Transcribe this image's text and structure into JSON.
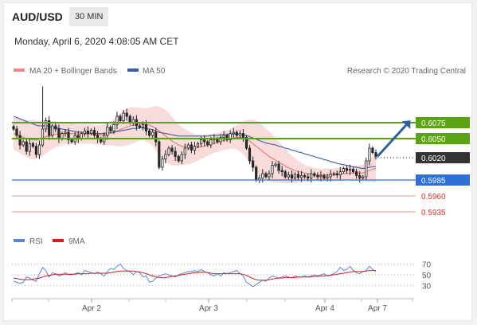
{
  "header": {
    "pair": "AUD/USD",
    "timeframe": "30 MIN"
  },
  "timestamp": "Monday, April 6, 2020 4:08:05 AM CET",
  "legend": {
    "ma_bands": "MA 20 + Bollinger Bands",
    "ma50": "MA 50",
    "credit": "Research © 2020 Trading Central"
  },
  "rsi_legend": {
    "rsi": "RSI",
    "ma": "9MA"
  },
  "colors": {
    "up_candle": "#ffffff",
    "down_candle": "#2b2b2b",
    "bands": "#f7d5d5",
    "ma20": "#e88080",
    "ma50": "#4a67a8",
    "resistance": "#5aa315",
    "support": "#2d6fd6",
    "target": "#e03030",
    "current": "#333333",
    "rsi_line": "#5b86d6",
    "rsi_ma": "#d02020",
    "arrow": "#2f5f9e"
  },
  "chart_data": [
    {
      "type": "candlestick",
      "y_range": [
        0.5915,
        0.614
      ],
      "x_ticks": [
        "Apr 2",
        "Apr 3",
        "Apr 4",
        "Apr 7"
      ],
      "levels": [
        {
          "value": "0.6075",
          "kind": "resistance"
        },
        {
          "value": "0.6050",
          "kind": "resistance"
        },
        {
          "value": "0.6020",
          "kind": "current"
        },
        {
          "value": "0.5985",
          "kind": "support"
        },
        {
          "value": "0.5960",
          "kind": "target"
        },
        {
          "value": "0.5935",
          "kind": "target"
        }
      ],
      "forecast": {
        "direction": "up",
        "from": 0.6022,
        "to": 0.6075
      },
      "closes": [
        0.6065,
        0.6055,
        0.604,
        0.6045,
        0.603,
        0.6042,
        0.6038,
        0.6025,
        0.604,
        0.6065,
        0.6078,
        0.6055,
        0.607,
        0.6065,
        0.605,
        0.6058,
        0.606,
        0.6048,
        0.6045,
        0.6055,
        0.605,
        0.6058,
        0.6062,
        0.6058,
        0.6063,
        0.6055,
        0.605,
        0.6045,
        0.6055,
        0.6068,
        0.6062,
        0.6072,
        0.6085,
        0.6078,
        0.609,
        0.6085,
        0.6075,
        0.608,
        0.607,
        0.6068,
        0.6072,
        0.6062,
        0.6055,
        0.606,
        0.6045,
        0.6005,
        0.6018,
        0.6025,
        0.6035,
        0.603,
        0.6022,
        0.6015,
        0.6025,
        0.6035,
        0.604,
        0.6032,
        0.6038,
        0.6042,
        0.6048,
        0.6045,
        0.604,
        0.6048,
        0.605,
        0.6045,
        0.6052,
        0.6055,
        0.6048,
        0.6058,
        0.606,
        0.6055,
        0.6058,
        0.6052,
        0.6035,
        0.6015,
        0.6005,
        0.5985,
        0.5988,
        0.5995,
        0.599,
        0.5995,
        0.6008,
        0.601,
        0.6,
        0.5998,
        0.599,
        0.5993,
        0.5988,
        0.5994,
        0.5989,
        0.5992,
        0.599,
        0.5988,
        0.5995,
        0.5992,
        0.599,
        0.5992,
        0.5988,
        0.599,
        0.5994,
        0.5995,
        0.5993,
        0.5998,
        0.6003,
        0.6,
        0.6002,
        0.5998,
        0.5992,
        0.5988,
        0.599,
        0.6015,
        0.6035,
        0.6028,
        0.6022
      ],
      "ma50": [
        0.6085,
        0.6083,
        0.6081,
        0.6079,
        0.6077,
        0.6075,
        0.6073,
        0.6071,
        0.607,
        0.607,
        0.607,
        0.6069,
        0.6068,
        0.6067,
        0.6066,
        0.6065,
        0.6064,
        0.6063,
        0.6062,
        0.6061,
        0.606,
        0.606,
        0.6059,
        0.6059,
        0.6059,
        0.6058,
        0.6058,
        0.6058,
        0.6058,
        0.6059,
        0.6059,
        0.606,
        0.6061,
        0.6062,
        0.6063,
        0.6064,
        0.6065,
        0.6066,
        0.6066,
        0.6067,
        0.6067,
        0.6066,
        0.6065,
        0.6064,
        0.6062,
        0.606,
        0.6059,
        0.6058,
        0.6057,
        0.6056,
        0.6055,
        0.6054,
        0.6054,
        0.6054,
        0.6054,
        0.6054,
        0.6054,
        0.6054,
        0.6054,
        0.6054,
        0.6054,
        0.6055,
        0.6055,
        0.6055,
        0.6056,
        0.6056,
        0.6056,
        0.6057,
        0.6057,
        0.6057,
        0.6057,
        0.6056,
        0.6055,
        0.6053,
        0.6051,
        0.6049,
        0.6047,
        0.6045,
        0.6043,
        0.6042,
        0.6041,
        0.604,
        0.6038,
        0.6037,
        0.6035,
        0.6034,
        0.6032,
        0.6031,
        0.6029,
        0.6028,
        0.6026,
        0.6025,
        0.6023,
        0.6022,
        0.602,
        0.6019,
        0.6017,
        0.6016,
        0.6014,
        0.6013,
        0.6011,
        0.601,
        0.6009,
        0.6008,
        0.6007,
        0.6006,
        0.6005,
        0.6004,
        0.6003,
        0.6004,
        0.6005,
        0.6006,
        0.6006
      ],
      "ma20": [
        0.6058,
        0.6056,
        0.6054,
        0.6052,
        0.605,
        0.6049,
        0.6048,
        0.6048,
        0.6049,
        0.6051,
        0.6053,
        0.6054,
        0.6056,
        0.6057,
        0.6057,
        0.6058,
        0.6058,
        0.6058,
        0.6058,
        0.6058,
        0.6057,
        0.6057,
        0.6057,
        0.6057,
        0.6057,
        0.6056,
        0.6056,
        0.6056,
        0.6056,
        0.6057,
        0.6058,
        0.606,
        0.6062,
        0.6064,
        0.6066,
        0.6068,
        0.607,
        0.6071,
        0.6072,
        0.6073,
        0.6073,
        0.6072,
        0.6071,
        0.6069,
        0.6066,
        0.6062,
        0.6058,
        0.6054,
        0.605,
        0.6046,
        0.6043,
        0.604,
        0.6038,
        0.6037,
        0.6036,
        0.6035,
        0.6035,
        0.6036,
        0.6037,
        0.6038,
        0.604,
        0.6041,
        0.6043,
        0.6044,
        0.6046,
        0.6047,
        0.6048,
        0.605,
        0.6051,
        0.6052,
        0.6052,
        0.6051,
        0.6049,
        0.6046,
        0.6042,
        0.6038,
        0.6034,
        0.603,
        0.6026,
        0.6022,
        0.6019,
        0.6016,
        0.6013,
        0.601,
        0.6007,
        0.6004,
        0.6002,
        0.6,
        0.5998,
        0.5997,
        0.5996,
        0.5995,
        0.5994,
        0.5994,
        0.5993,
        0.5993,
        0.5993,
        0.5993,
        0.5993,
        0.5993,
        0.5994,
        0.5994,
        0.5995,
        0.5995,
        0.5996,
        0.5996,
        0.5996,
        0.5996,
        0.5996,
        0.5998,
        0.6,
        0.6002,
        0.6003
      ],
      "band_width": [
        0.0025,
        0.0026,
        0.0027,
        0.0028,
        0.0029,
        0.003,
        0.0031,
        0.003,
        0.0029,
        0.0028,
        0.0026,
        0.0024,
        0.0022,
        0.002,
        0.0019,
        0.0018,
        0.0017,
        0.0016,
        0.0016,
        0.0015,
        0.0015,
        0.0015,
        0.0015,
        0.0015,
        0.0015,
        0.0015,
        0.0015,
        0.0015,
        0.0016,
        0.0017,
        0.0019,
        0.0021,
        0.0024,
        0.0026,
        0.0028,
        0.0029,
        0.0029,
        0.0028,
        0.0027,
        0.0026,
        0.0025,
        0.0026,
        0.0028,
        0.0031,
        0.0035,
        0.0038,
        0.004,
        0.0041,
        0.004,
        0.0038,
        0.0035,
        0.0032,
        0.003,
        0.0028,
        0.0026,
        0.0024,
        0.0022,
        0.002,
        0.0019,
        0.0018,
        0.0017,
        0.0016,
        0.0015,
        0.0015,
        0.0015,
        0.0015,
        0.0015,
        0.0016,
        0.0017,
        0.0019,
        0.0022,
        0.0026,
        0.003,
        0.0034,
        0.0038,
        0.004,
        0.0041,
        0.0041,
        0.004,
        0.0039,
        0.0037,
        0.0035,
        0.0032,
        0.003,
        0.0027,
        0.0024,
        0.0021,
        0.0019,
        0.0017,
        0.0015,
        0.0013,
        0.0012,
        0.0011,
        0.001,
        0.001,
        0.001,
        0.001,
        0.001,
        0.001,
        0.001,
        0.001,
        0.001,
        0.0011,
        0.0011,
        0.0011,
        0.0011,
        0.0012,
        0.0012,
        0.0013,
        0.0015,
        0.0018,
        0.002,
        0.0022
      ]
    },
    {
      "type": "line",
      "y_ticks": [
        "70",
        "50",
        "30"
      ],
      "y_range": [
        10,
        90
      ],
      "rsi": [
        38,
        36,
        34,
        36,
        46,
        44,
        40,
        38,
        52,
        64,
        58,
        46,
        54,
        52,
        48,
        50,
        54,
        50,
        50,
        52,
        54,
        50,
        58,
        56,
        54,
        52,
        55,
        52,
        48,
        56,
        62,
        60,
        66,
        70,
        62,
        58,
        56,
        50,
        56,
        54,
        46,
        48,
        36,
        38,
        44,
        48,
        50,
        52,
        50,
        48,
        46,
        50,
        52,
        54,
        56,
        56,
        58,
        56,
        60,
        56,
        54,
        50,
        48,
        52,
        48,
        54,
        52,
        54,
        56,
        58,
        52,
        48,
        36,
        32,
        28,
        32,
        36,
        40,
        38,
        44,
        48,
        46,
        44,
        46,
        48,
        46,
        44,
        48,
        46,
        46,
        48,
        46,
        48,
        50,
        48,
        50,
        52,
        48,
        50,
        52,
        56,
        64,
        58,
        60,
        66,
        58,
        54,
        52,
        56,
        58,
        66,
        60,
        56
      ],
      "ma": [
        44,
        43,
        42,
        41,
        41,
        41,
        42,
        43,
        44,
        46,
        48,
        49,
        50,
        51,
        51,
        51,
        51,
        51,
        51,
        51,
        52,
        52,
        52,
        52,
        53,
        53,
        53,
        53,
        53,
        53,
        54,
        55,
        56,
        57,
        57,
        57,
        57,
        57,
        56,
        55,
        54,
        52,
        50,
        48,
        46,
        45,
        45,
        45,
        46,
        47,
        48,
        49,
        50,
        51,
        52,
        53,
        54,
        54,
        55,
        55,
        54,
        53,
        52,
        52,
        52,
        52,
        52,
        52,
        52,
        52,
        52,
        51,
        49,
        46,
        43,
        41,
        40,
        40,
        40,
        41,
        42,
        43,
        44,
        44,
        45,
        45,
        45,
        45,
        46,
        46,
        46,
        46,
        46,
        47,
        47,
        48,
        48,
        49,
        49,
        50,
        51,
        52,
        53,
        54,
        55,
        56,
        56,
        56,
        56,
        57,
        58,
        58,
        58
      ]
    }
  ]
}
